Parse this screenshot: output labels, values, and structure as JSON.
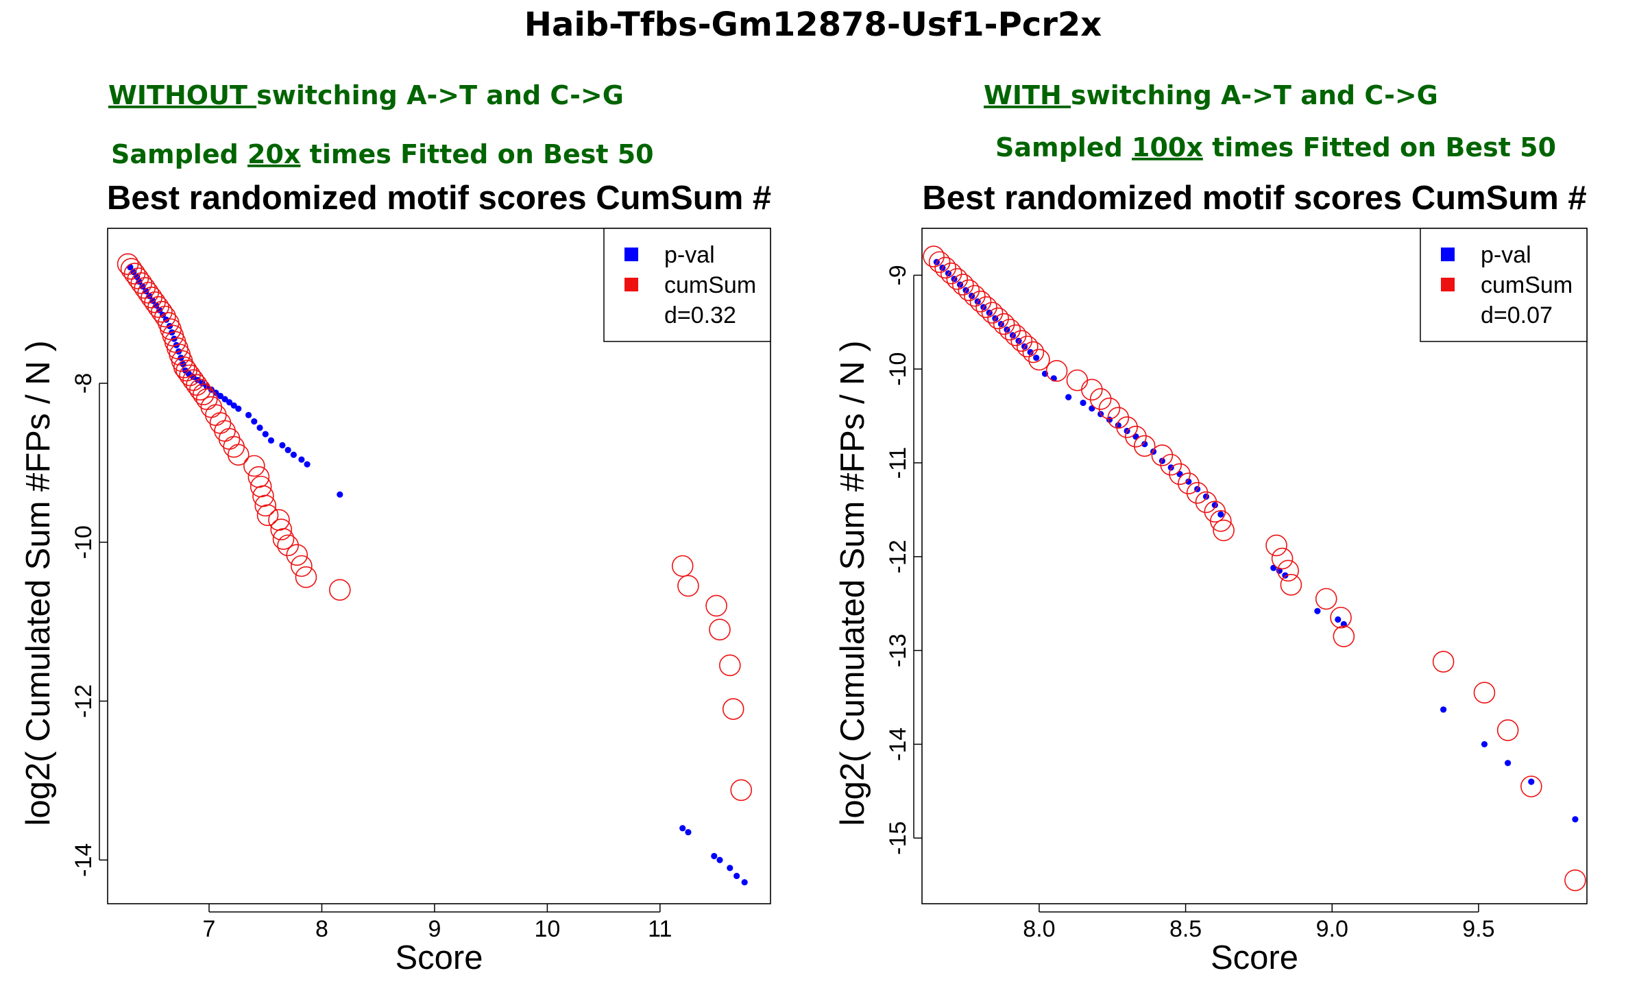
{
  "figure": {
    "title": "Haib-Tfbs-Gm12878-Usf1-Pcr2x"
  },
  "panels": [
    {
      "sub1": {
        "underlined": "WITHOUT ",
        "rest": "switching A->T and C->G"
      },
      "sub2": {
        "pre": "Sampled ",
        "underlined": "20x",
        "post": " times Fitted on Best 50"
      }
    },
    {
      "sub1": {
        "underlined": "WITH ",
        "rest": "switching A->T and C->G"
      },
      "sub2": {
        "pre": "Sampled ",
        "underlined": "100x",
        "post": " times Fitted on Best 50"
      }
    }
  ],
  "colors": {
    "pval": "#0000ff",
    "cumsum": "#ee1111",
    "subtitle": "#006400"
  },
  "chart_data": [
    {
      "type": "scatter",
      "title": "Best randomized motif scores CumSum #",
      "xlabel": "Score",
      "ylabel": "log2( Cumulated Sum #FPs / N )",
      "xlim": [
        6.1,
        11.98
      ],
      "ylim": [
        -14.55,
        -6.05
      ],
      "xticks": [
        7,
        8,
        9,
        10,
        11
      ],
      "yticks": [
        -8,
        -10,
        -12,
        -14
      ],
      "legend": {
        "position": "top-right",
        "items": [
          "p-val",
          "cumSum"
        ],
        "note": "d=0.32"
      },
      "series": [
        {
          "name": "p-val",
          "marker": "dot",
          "x": [
            6.3,
            6.33,
            6.36,
            6.38,
            6.41,
            6.44,
            6.47,
            6.5,
            6.53,
            6.56,
            6.59,
            6.62,
            6.65,
            6.67,
            6.69,
            6.71,
            6.73,
            6.75,
            6.77,
            6.79,
            6.82,
            6.86,
            6.9,
            6.94,
            6.98,
            7.02,
            7.06,
            7.1,
            7.14,
            7.18,
            7.22,
            7.26,
            7.35,
            7.4,
            7.45,
            7.5,
            7.55,
            7.65,
            7.7,
            7.75,
            7.82,
            7.87,
            8.16,
            11.2,
            11.25,
            11.48,
            11.53,
            11.62,
            11.68,
            11.75
          ],
          "y": [
            -6.54,
            -6.6,
            -6.66,
            -6.72,
            -6.78,
            -6.84,
            -6.9,
            -6.96,
            -7.02,
            -7.08,
            -7.14,
            -7.2,
            -7.28,
            -7.36,
            -7.44,
            -7.52,
            -7.6,
            -7.68,
            -7.76,
            -7.84,
            -7.88,
            -7.92,
            -7.96,
            -8.0,
            -8.04,
            -8.08,
            -8.12,
            -8.16,
            -8.2,
            -8.24,
            -8.28,
            -8.32,
            -8.4,
            -8.48,
            -8.56,
            -8.64,
            -8.72,
            -8.78,
            -8.84,
            -8.9,
            -8.96,
            -9.02,
            -9.4,
            -13.6,
            -13.65,
            -13.95,
            -14.0,
            -14.1,
            -14.2,
            -14.28
          ]
        },
        {
          "name": "cumSum",
          "marker": "circle",
          "x": [
            6.28,
            6.31,
            6.34,
            6.37,
            6.4,
            6.43,
            6.46,
            6.49,
            6.52,
            6.55,
            6.58,
            6.61,
            6.64,
            6.66,
            6.68,
            6.7,
            6.72,
            6.74,
            6.76,
            6.78,
            6.8,
            6.83,
            6.86,
            6.89,
            6.92,
            6.95,
            6.98,
            7.02,
            7.06,
            7.1,
            7.14,
            7.18,
            7.22,
            7.26,
            7.4,
            7.44,
            7.46,
            7.48,
            7.5,
            7.52,
            7.62,
            7.64,
            7.66,
            7.7,
            7.78,
            7.82,
            7.86,
            8.16,
            11.2,
            11.25,
            11.5,
            11.53,
            11.62,
            11.65,
            11.72
          ],
          "y": [
            -6.5,
            -6.56,
            -6.62,
            -6.68,
            -6.74,
            -6.8,
            -6.86,
            -6.92,
            -6.98,
            -7.04,
            -7.1,
            -7.16,
            -7.24,
            -7.32,
            -7.4,
            -7.48,
            -7.56,
            -7.64,
            -7.72,
            -7.8,
            -7.84,
            -7.9,
            -7.96,
            -8.02,
            -8.08,
            -8.14,
            -8.2,
            -8.3,
            -8.4,
            -8.5,
            -8.6,
            -8.7,
            -8.8,
            -8.9,
            -9.04,
            -9.18,
            -9.3,
            -9.42,
            -9.54,
            -9.66,
            -9.72,
            -9.84,
            -9.96,
            -10.04,
            -10.16,
            -10.3,
            -10.44,
            -10.6,
            -10.3,
            -10.55,
            -10.8,
            -11.1,
            -11.55,
            -12.1,
            -13.12
          ]
        }
      ]
    },
    {
      "type": "scatter",
      "title": "Best randomized motif scores CumSum #",
      "xlabel": "Score",
      "ylabel": "log2( Cumulated Sum #FPs / N )",
      "xlim": [
        7.6,
        9.87
      ],
      "ylim": [
        -15.7,
        -8.5
      ],
      "xticks": [
        8.0,
        8.5,
        9.0,
        9.5
      ],
      "yticks": [
        -9,
        -10,
        -11,
        -12,
        -13,
        -14,
        -15
      ],
      "legend": {
        "position": "top-right",
        "items": [
          "p-val",
          "cumSum"
        ],
        "note": "d=0.07"
      },
      "series": [
        {
          "name": "p-val",
          "marker": "dot",
          "x": [
            7.65,
            7.67,
            7.69,
            7.71,
            7.73,
            7.75,
            7.77,
            7.79,
            7.81,
            7.83,
            7.85,
            7.87,
            7.89,
            7.91,
            7.93,
            7.95,
            7.97,
            7.99,
            8.02,
            8.05,
            8.1,
            8.15,
            8.18,
            8.21,
            8.24,
            8.27,
            8.3,
            8.33,
            8.36,
            8.39,
            8.42,
            8.45,
            8.48,
            8.51,
            8.54,
            8.57,
            8.6,
            8.62,
            8.8,
            8.82,
            8.84,
            8.95,
            9.02,
            9.04,
            9.38,
            9.52,
            9.6,
            9.68,
            9.83
          ],
          "y": [
            -8.86,
            -8.92,
            -8.98,
            -9.04,
            -9.1,
            -9.16,
            -9.22,
            -9.28,
            -9.34,
            -9.4,
            -9.46,
            -9.52,
            -9.58,
            -9.64,
            -9.7,
            -9.76,
            -9.82,
            -9.88,
            -10.05,
            -10.1,
            -10.3,
            -10.36,
            -10.42,
            -10.48,
            -10.54,
            -10.6,
            -10.66,
            -10.72,
            -10.8,
            -10.88,
            -10.98,
            -11.05,
            -11.12,
            -11.2,
            -11.28,
            -11.36,
            -11.45,
            -11.55,
            -12.12,
            -12.15,
            -12.2,
            -12.58,
            -12.67,
            -12.72,
            -13.63,
            -14.0,
            -14.2,
            -14.4,
            -14.8
          ]
        },
        {
          "name": "cumSum",
          "marker": "circle",
          "x": [
            7.64,
            7.66,
            7.68,
            7.7,
            7.72,
            7.74,
            7.76,
            7.78,
            7.8,
            7.82,
            7.84,
            7.86,
            7.88,
            7.9,
            7.92,
            7.94,
            7.96,
            7.98,
            8.0,
            8.06,
            8.13,
            8.18,
            8.21,
            8.24,
            8.27,
            8.3,
            8.33,
            8.36,
            8.42,
            8.45,
            8.48,
            8.51,
            8.54,
            8.57,
            8.6,
            8.62,
            8.63,
            8.81,
            8.83,
            8.85,
            8.86,
            8.98,
            9.03,
            9.04,
            9.38,
            9.52,
            9.6,
            9.68,
            9.83
          ],
          "y": [
            -8.8,
            -8.86,
            -8.92,
            -8.98,
            -9.04,
            -9.1,
            -9.16,
            -9.22,
            -9.28,
            -9.34,
            -9.4,
            -9.46,
            -9.52,
            -9.58,
            -9.64,
            -9.7,
            -9.76,
            -9.82,
            -9.9,
            -10.02,
            -10.12,
            -10.22,
            -10.32,
            -10.42,
            -10.52,
            -10.62,
            -10.72,
            -10.82,
            -10.92,
            -11.02,
            -11.12,
            -11.22,
            -11.32,
            -11.42,
            -11.52,
            -11.62,
            -11.72,
            -11.88,
            -12.02,
            -12.15,
            -12.3,
            -12.45,
            -12.65,
            -12.85,
            -13.12,
            -13.45,
            -13.85,
            -14.45,
            -15.45
          ]
        }
      ]
    }
  ]
}
